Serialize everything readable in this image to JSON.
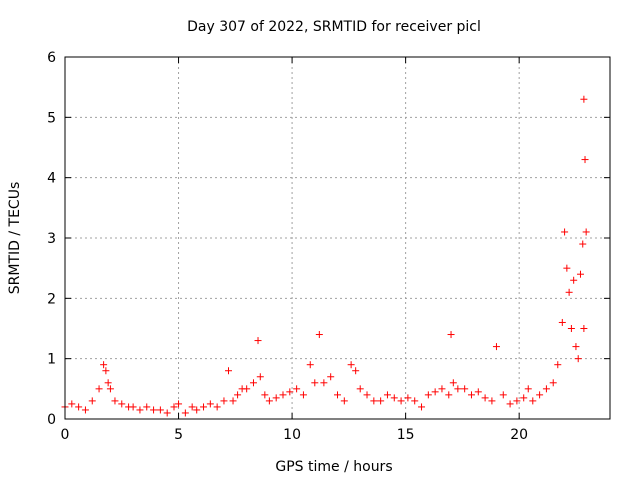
{
  "chart_data": {
    "type": "scatter",
    "title": "Day 307 of 2022, SRMTID for receiver picl",
    "xlabel": "GPS time / hours",
    "ylabel": "SRMTID / TECUs",
    "xlim": [
      0,
      24
    ],
    "ylim": [
      0,
      6
    ],
    "xticks": [
      "0",
      "5",
      "10",
      "15",
      "20"
    ],
    "yticks": [
      "0",
      "1",
      "2",
      "3",
      "4",
      "5",
      "6"
    ],
    "grid": true,
    "marker": "plus",
    "color": "#ff0000",
    "series": [
      {
        "x": [
          0.0,
          0.3,
          0.6,
          0.9,
          1.2,
          1.5,
          1.7,
          1.8,
          1.9,
          2.0,
          2.2,
          2.5,
          2.8,
          3.0,
          3.3,
          3.6,
          3.9,
          4.2,
          4.5,
          4.8,
          5.0,
          5.3,
          5.6,
          5.8,
          6.1,
          6.4,
          6.7,
          7.0,
          7.2,
          7.4,
          7.6,
          7.8,
          8.0,
          8.3,
          8.5,
          8.6,
          8.8,
          9.0,
          9.3,
          9.6,
          9.9,
          10.2,
          10.5,
          10.8,
          11.0,
          11.2,
          11.4,
          11.7,
          12.0,
          12.3,
          12.6,
          12.8,
          13.0,
          13.3,
          13.6,
          13.9,
          14.2,
          14.5,
          14.8,
          15.1,
          15.4,
          15.7,
          16.0,
          16.3,
          16.6,
          16.9,
          17.0,
          17.1,
          17.3,
          17.6,
          17.9,
          18.2,
          18.5,
          18.8,
          19.0,
          19.3,
          19.6,
          19.9,
          20.2,
          20.4,
          20.6,
          20.9,
          21.2,
          21.5,
          21.7,
          21.9,
          22.0,
          22.1,
          22.2,
          22.3,
          22.4,
          22.5,
          22.6,
          22.7,
          22.8,
          22.85,
          22.9,
          22.95,
          22.85
        ],
        "y": [
          0.2,
          0.25,
          0.2,
          0.15,
          0.3,
          0.5,
          0.9,
          0.8,
          0.6,
          0.5,
          0.3,
          0.25,
          0.2,
          0.2,
          0.15,
          0.2,
          0.15,
          0.15,
          0.1,
          0.2,
          0.25,
          0.1,
          0.2,
          0.15,
          0.2,
          0.25,
          0.2,
          0.3,
          0.8,
          0.3,
          0.4,
          0.5,
          0.5,
          0.6,
          1.3,
          0.7,
          0.4,
          0.3,
          0.35,
          0.4,
          0.45,
          0.5,
          0.4,
          0.9,
          0.6,
          1.4,
          0.6,
          0.7,
          0.4,
          0.3,
          0.9,
          0.8,
          0.5,
          0.4,
          0.3,
          0.3,
          0.4,
          0.35,
          0.3,
          0.35,
          0.3,
          0.2,
          0.4,
          0.45,
          0.5,
          0.4,
          1.4,
          0.6,
          0.5,
          0.5,
          0.4,
          0.45,
          0.35,
          0.3,
          1.2,
          0.4,
          0.25,
          0.3,
          0.35,
          0.5,
          0.3,
          0.4,
          0.5,
          0.6,
          0.9,
          1.6,
          3.1,
          2.5,
          2.1,
          1.5,
          2.3,
          1.2,
          1.0,
          2.4,
          2.9,
          5.3,
          4.3,
          3.1,
          1.5
        ]
      }
    ]
  }
}
